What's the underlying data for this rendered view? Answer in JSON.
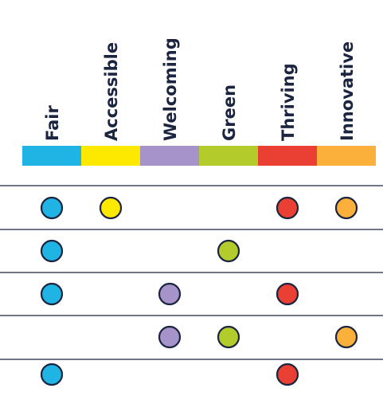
{
  "columns": [
    {
      "key": "fair",
      "label": "Fair",
      "color": "#1fb4e3"
    },
    {
      "key": "accessible",
      "label": "Accessible",
      "color": "#fde800"
    },
    {
      "key": "welcoming",
      "label": "Welcoming",
      "color": "#a593c9"
    },
    {
      "key": "green",
      "label": "Green",
      "color": "#b3cc2c"
    },
    {
      "key": "thriving",
      "label": "Thriving",
      "color": "#ea3f33"
    },
    {
      "key": "innovative",
      "label": "Innovative",
      "color": "#fbb03b"
    }
  ],
  "rows": [
    {
      "marks": [
        true,
        true,
        false,
        false,
        true,
        true
      ]
    },
    {
      "marks": [
        true,
        false,
        false,
        true,
        false,
        false
      ]
    },
    {
      "marks": [
        true,
        false,
        true,
        false,
        true,
        false
      ]
    },
    {
      "marks": [
        false,
        false,
        true,
        true,
        false,
        true
      ]
    },
    {
      "marks": [
        true,
        false,
        false,
        false,
        true,
        false
      ]
    }
  ],
  "line_color": "#1b2540"
}
